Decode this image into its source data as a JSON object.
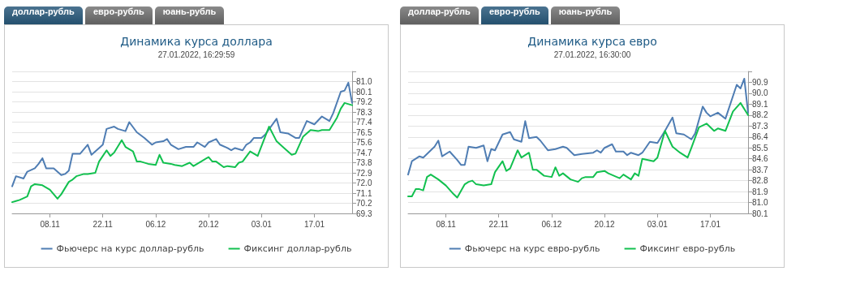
{
  "chart_data": [
    {
      "type": "line",
      "title": "Динамика курса доллара",
      "subtitle": "27.01.2022, 16:29:59",
      "annotations": [
        "доллар-рубль",
        "евро-рубль",
        "юань-рубль"
      ],
      "xlim": [
        "2021-10-29",
        "2022-01-27"
      ],
      "xticks": [
        {
          "value": "2021-11-08",
          "label": "08.11"
        },
        {
          "value": "2021-11-22",
          "label": "22.11"
        },
        {
          "value": "2021-12-06",
          "label": "06.12"
        },
        {
          "value": "2021-12-20",
          "label": "20.12"
        },
        {
          "value": "2022-01-03",
          "label": "03.01"
        },
        {
          "value": "2022-01-17",
          "label": "17.01"
        }
      ],
      "ylim": [
        69.3,
        81.9
      ],
      "yticks": [
        69.3,
        70.2,
        71.1,
        {
          "value": 72,
          "label": "72.0"
        },
        72.9,
        73.8,
        74.7,
        75.6,
        76.5,
        77.4,
        78.3,
        79.2,
        80.1,
        {
          "value": 81,
          "label": "81.0"
        },
        {
          "value": 81.9,
          "label": null
        }
      ],
      "grid": "y",
      "legend": "bottom",
      "marker": "none",
      "line_style": "solid",
      "series": [
        {
          "name": "Фьючерс на курс доллар-рубль",
          "color": "#4f7db3",
          "x": [
            "2021-10-29",
            "2021-10-30",
            "2021-11-01",
            "2021-11-02",
            "2021-11-04",
            "2021-11-05",
            "2021-11-06",
            "2021-11-07",
            "2021-11-09",
            "2021-11-11",
            "2021-11-12",
            "2021-11-13",
            "2021-11-14",
            "2021-11-16",
            "2021-11-18",
            "2021-11-19",
            "2021-11-21",
            "2021-11-22",
            "2021-11-23",
            "2021-11-25",
            "2021-11-26",
            "2021-11-28",
            "2021-11-29",
            "2021-12-01",
            "2021-12-03",
            "2021-12-05",
            "2021-12-06",
            "2021-12-08",
            "2021-12-09",
            "2021-12-10",
            "2021-12-12",
            "2021-12-14",
            "2021-12-16",
            "2021-12-17",
            "2021-12-19",
            "2021-12-20",
            "2021-12-22",
            "2021-12-23",
            "2021-12-25",
            "2021-12-26",
            "2021-12-27",
            "2021-12-29",
            "2021-12-30",
            "2021-12-31",
            "2022-01-01",
            "2022-01-03",
            "2022-01-04",
            "2022-01-07",
            "2022-01-08",
            "2022-01-10",
            "2022-01-12",
            "2022-01-13",
            "2022-01-15",
            "2022-01-17",
            "2022-01-19",
            "2022-01-21",
            "2022-01-22",
            "2022-01-24",
            "2022-01-25",
            "2022-01-26",
            "2022-01-27"
          ],
          "values": [
            71.7,
            72.6,
            72.4,
            73.0,
            73.3,
            73.7,
            74.2,
            73.3,
            73.3,
            72.7,
            72.8,
            73.1,
            74.6,
            74.6,
            75.4,
            74.5,
            75.1,
            75.4,
            76.8,
            77.0,
            76.8,
            76.6,
            77.4,
            76.5,
            76.0,
            75.4,
            75.6,
            75.7,
            75.9,
            75.4,
            75.0,
            75.2,
            75.2,
            75.6,
            75.2,
            75.6,
            75.9,
            75.4,
            75.1,
            74.9,
            75.1,
            74.9,
            75.4,
            75.6,
            76.0,
            76.0,
            76.3,
            77.7,
            76.5,
            76.4,
            76.0,
            76.0,
            77.5,
            77.2,
            77.9,
            77.5,
            78.2,
            80.1,
            80.2,
            80.9,
            79.1
          ]
        },
        {
          "name": "Фиксинг доллар-рубль",
          "color": "#12c04f",
          "x": [
            "2021-10-29",
            "2021-10-30",
            "2021-10-31",
            "2021-11-02",
            "2021-11-03",
            "2021-11-04",
            "2021-11-06",
            "2021-11-08",
            "2021-11-10",
            "2021-11-11",
            "2021-11-13",
            "2021-11-14",
            "2021-11-15",
            "2021-11-17",
            "2021-11-18",
            "2021-11-20",
            "2021-11-21",
            "2021-11-23",
            "2021-11-24",
            "2021-11-25",
            "2021-11-27",
            "2021-11-28",
            "2021-11-30",
            "2021-12-01",
            "2021-12-02",
            "2021-12-04",
            "2021-12-06",
            "2021-12-07",
            "2021-12-08",
            "2021-12-10",
            "2021-12-11",
            "2021-12-13",
            "2021-12-15",
            "2021-12-16",
            "2021-12-18",
            "2021-12-20",
            "2021-12-21",
            "2021-12-22",
            "2021-12-24",
            "2021-12-25",
            "2021-12-27",
            "2021-12-28",
            "2021-12-29",
            "2021-12-31",
            "2022-01-02",
            "2022-01-05",
            "2022-01-07",
            "2022-01-09",
            "2022-01-11",
            "2022-01-12",
            "2022-01-14",
            "2022-01-16",
            "2022-01-18",
            "2022-01-19",
            "2022-01-21",
            "2022-01-23",
            "2022-01-24",
            "2022-01-25",
            "2022-01-27"
          ],
          "values": [
            70.3,
            70.4,
            70.5,
            70.8,
            71.7,
            71.9,
            71.8,
            71.4,
            70.6,
            71.0,
            72.1,
            72.3,
            72.6,
            72.8,
            72.8,
            72.9,
            73.9,
            74.9,
            74.4,
            74.7,
            75.8,
            75.2,
            74.8,
            73.9,
            73.9,
            73.7,
            73.6,
            74.5,
            73.8,
            73.7,
            73.6,
            73.5,
            73.8,
            73.5,
            73.9,
            74.3,
            73.9,
            73.9,
            73.4,
            73.5,
            73.4,
            73.8,
            73.9,
            74.8,
            74.4,
            77.0,
            75.7,
            75.1,
            74.5,
            74.6,
            76.1,
            76.7,
            76.6,
            76.7,
            76.7,
            77.8,
            78.6,
            79.1,
            78.9
          ]
        }
      ]
    },
    {
      "type": "line",
      "title": "Динамика курса евро",
      "subtitle": "27.01.2022, 16:30:00",
      "annotations": [
        "доллар-рубль",
        "евро-рубль",
        "юань-рубль"
      ],
      "xlim": [
        "2021-10-29",
        "2022-01-27"
      ],
      "xticks": [
        {
          "value": "2021-11-08",
          "label": "08.11"
        },
        {
          "value": "2021-11-22",
          "label": "22.11"
        },
        {
          "value": "2021-12-06",
          "label": "06.12"
        },
        {
          "value": "2021-12-20",
          "label": "20.12"
        },
        {
          "value": "2022-01-03",
          "label": "03.01"
        },
        {
          "value": "2022-01-17",
          "label": "17.01"
        }
      ],
      "ylim": [
        80.1,
        91.8
      ],
      "yticks": [
        80.1,
        {
          "value": 81,
          "label": "81.0"
        },
        81.9,
        82.8,
        83.7,
        84.6,
        85.5,
        86.4,
        87.3,
        88.2,
        89.1,
        {
          "value": 90,
          "label": "90.0"
        },
        90.9,
        {
          "value": 91.8,
          "label": null
        }
      ],
      "grid": "y",
      "legend": "bottom",
      "marker": "none",
      "line_style": "solid",
      "series": [
        {
          "name": "Фьючерс на курс евро-рубль",
          "color": "#4f7db3",
          "x": [
            "2021-10-29",
            "2021-10-30",
            "2021-11-01",
            "2021-11-02",
            "2021-11-04",
            "2021-11-05",
            "2021-11-06",
            "2021-11-07",
            "2021-11-09",
            "2021-11-11",
            "2021-11-12",
            "2021-11-13",
            "2021-11-14",
            "2021-11-16",
            "2021-11-18",
            "2021-11-19",
            "2021-11-20",
            "2021-11-21",
            "2021-11-23",
            "2021-11-25",
            "2021-11-26",
            "2021-11-28",
            "2021-11-29",
            "2021-11-30",
            "2021-12-02",
            "2021-12-03",
            "2021-12-05",
            "2021-12-07",
            "2021-12-09",
            "2021-12-10",
            "2021-12-12",
            "2021-12-14",
            "2021-12-17",
            "2021-12-18",
            "2021-12-19",
            "2021-12-20",
            "2021-12-22",
            "2021-12-23",
            "2021-12-25",
            "2021-12-26",
            "2021-12-27",
            "2021-12-29",
            "2021-12-30",
            "2022-01-01",
            "2022-01-03",
            "2022-01-05",
            "2022-01-07",
            "2022-01-08",
            "2022-01-10",
            "2022-01-12",
            "2022-01-13",
            "2022-01-15",
            "2022-01-16",
            "2022-01-17",
            "2022-01-19",
            "2022-01-21",
            "2022-01-24",
            "2022-01-25",
            "2022-01-26",
            "2022-01-27"
          ],
          "values": [
            83.3,
            84.4,
            84.8,
            84.7,
            85.3,
            85.6,
            86.1,
            84.8,
            85.2,
            84.5,
            84.1,
            84.1,
            85.6,
            85.5,
            85.7,
            84.4,
            85.4,
            85.3,
            86.6,
            86.8,
            86.2,
            86.0,
            87.7,
            86.3,
            86.4,
            86.1,
            85.3,
            85.4,
            85.6,
            85.5,
            84.9,
            85.0,
            85.1,
            85.3,
            85.1,
            85.5,
            85.8,
            85.2,
            85.2,
            84.9,
            85.1,
            84.9,
            85.1,
            86.0,
            85.9,
            86.9,
            88.0,
            86.7,
            86.6,
            86.2,
            86.7,
            88.9,
            88.4,
            88.1,
            88.4,
            87.9,
            90.7,
            90.4,
            91.2,
            88.4
          ]
        },
        {
          "name": "Фиксинг евро-рубль",
          "color": "#12c04f",
          "x": [
            "2021-10-29",
            "2021-10-30",
            "2021-10-31",
            "2021-11-01",
            "2021-11-02",
            "2021-11-03",
            "2021-11-04",
            "2021-11-06",
            "2021-11-08",
            "2021-11-10",
            "2021-11-11",
            "2021-11-13",
            "2021-11-14",
            "2021-11-15",
            "2021-11-16",
            "2021-11-18",
            "2021-11-20",
            "2021-11-21",
            "2021-11-23",
            "2021-11-24",
            "2021-11-25",
            "2021-11-27",
            "2021-11-28",
            "2021-11-30",
            "2021-12-01",
            "2021-12-02",
            "2021-12-04",
            "2021-12-06",
            "2021-12-07",
            "2021-12-08",
            "2021-12-09",
            "2021-12-11",
            "2021-12-13",
            "2021-12-14",
            "2021-12-15",
            "2021-12-17",
            "2021-12-18",
            "2021-12-20",
            "2021-12-21",
            "2021-12-24",
            "2021-12-25",
            "2021-12-27",
            "2021-12-28",
            "2021-12-29",
            "2021-12-30",
            "2022-01-02",
            "2022-01-03",
            "2022-01-05",
            "2022-01-07",
            "2022-01-09",
            "2022-01-11",
            "2022-01-12",
            "2022-01-14",
            "2022-01-16",
            "2022-01-18",
            "2022-01-19",
            "2022-01-21",
            "2022-01-23",
            "2022-01-25",
            "2022-01-27"
          ],
          "values": [
            81.5,
            81.5,
            82.1,
            82.1,
            82.0,
            83.1,
            83.3,
            82.9,
            82.4,
            81.7,
            81.4,
            82.5,
            82.7,
            82.8,
            82.5,
            82.4,
            82.5,
            83.5,
            84.4,
            83.6,
            83.8,
            85.3,
            84.7,
            85.1,
            83.7,
            83.7,
            83.2,
            83.1,
            83.9,
            83.2,
            83.4,
            82.9,
            82.7,
            83.0,
            83.1,
            83.1,
            83.5,
            83.6,
            83.4,
            83.0,
            83.3,
            82.9,
            83.4,
            83.2,
            84.6,
            84.4,
            84.7,
            86.9,
            85.6,
            85.1,
            84.7,
            85.5,
            87.2,
            87.5,
            86.9,
            87.1,
            86.9,
            88.5,
            89.2,
            88.2
          ]
        }
      ]
    }
  ]
}
